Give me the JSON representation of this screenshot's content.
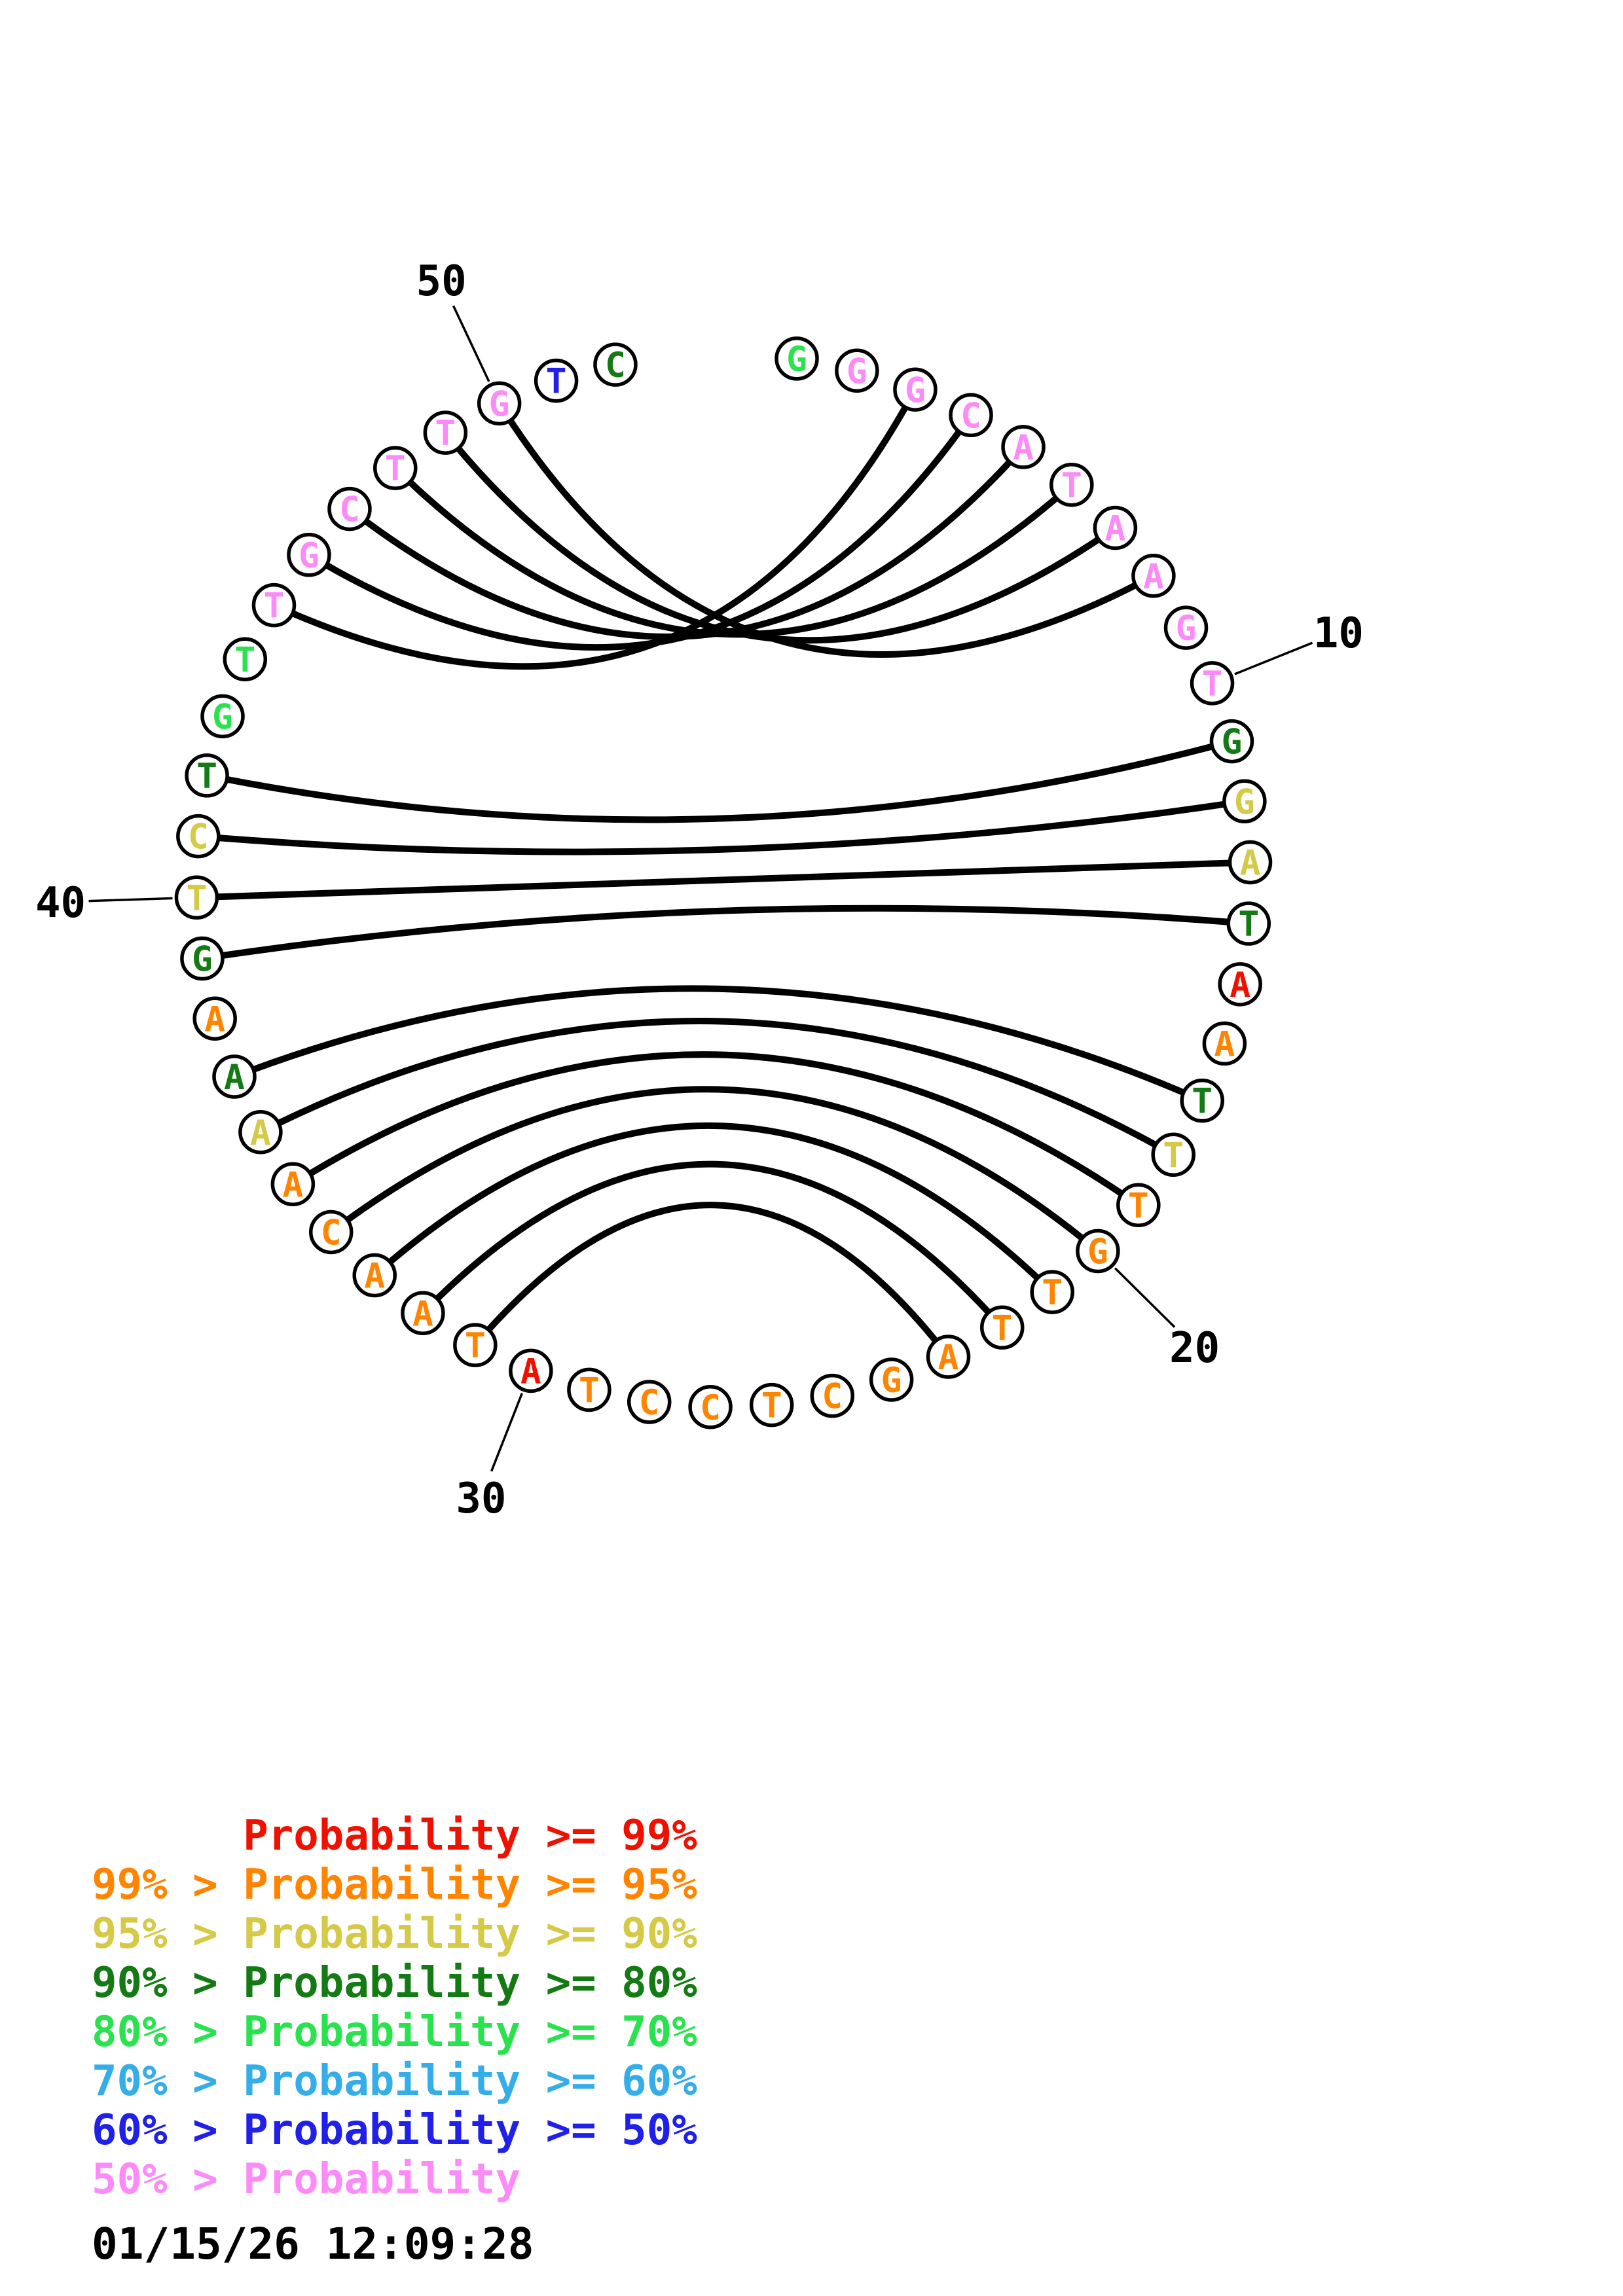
{
  "chart_data": {
    "type": "circle-plot",
    "title": "",
    "plot_style": "nucleic-acid base-pair probability circle plot",
    "num_nucleotides": 52,
    "bases": "GGGCATAAGTGGATAATTTGTTAGCTCCTATAACAAAAGTCTGTTGCTTGTC",
    "base_prob_classes": [
      "bright-green",
      "pink",
      "pink",
      "pink",
      "pink",
      "pink",
      "pink",
      "pink",
      "pink",
      "pink",
      "dark-green",
      "yellow",
      "yellow",
      "dark-green",
      "red",
      "orange",
      "dark-green",
      "yellow",
      "orange",
      "orange",
      "orange",
      "orange",
      "orange",
      "orange",
      "orange",
      "orange",
      "orange",
      "orange",
      "orange",
      "red",
      "orange",
      "orange",
      "orange",
      "orange",
      "orange",
      "yellow",
      "dark-green",
      "orange",
      "dark-green",
      "yellow",
      "yellow",
      "dark-green",
      "bright-green",
      "bright-green",
      "pink",
      "pink",
      "pink",
      "pink",
      "pink",
      "pink",
      "blue",
      "dark-green"
    ],
    "pairs": [
      [
        3,
        45
      ],
      [
        4,
        46
      ],
      [
        5,
        47
      ],
      [
        6,
        48
      ],
      [
        7,
        49
      ],
      [
        8,
        50
      ],
      [
        11,
        42
      ],
      [
        12,
        41
      ],
      [
        13,
        40
      ],
      [
        14,
        39
      ],
      [
        17,
        37
      ],
      [
        18,
        36
      ],
      [
        19,
        35
      ],
      [
        20,
        34
      ],
      [
        21,
        33
      ],
      [
        22,
        32
      ],
      [
        23,
        31
      ]
    ],
    "position_labels": [
      {
        "position": 10,
        "text": "10"
      },
      {
        "position": 20,
        "text": "20"
      },
      {
        "position": 30,
        "text": "30"
      },
      {
        "position": 40,
        "text": "40"
      },
      {
        "position": 50,
        "text": "50"
      }
    ],
    "legend": [
      {
        "text": "      Probability >= 99%",
        "class": "red"
      },
      {
        "text": "99% > Probability >= 95%",
        "class": "orange"
      },
      {
        "text": "95% > Probability >= 90%",
        "class": "yellow"
      },
      {
        "text": "90% > Probability >= 80%",
        "class": "dark-green"
      },
      {
        "text": "80% > Probability >= 70%",
        "class": "bright-green"
      },
      {
        "text": "70% > Probability >= 60%",
        "class": "light-blue"
      },
      {
        "text": "60% > Probability >= 50%",
        "class": "blue"
      },
      {
        "text": "50% > Probability",
        "class": "pink"
      }
    ],
    "palette": {
      "red": "#ee1100",
      "orange": "#ff8400",
      "yellow": "#d4ca48",
      "dark-green": "#147a14",
      "bright-green": "#2ae24e",
      "light-blue": "#35ade8",
      "blue": "#2020e8",
      "pink": "#fc8af8",
      "arc": "#000000",
      "circle-outline": "#000000",
      "label": "#000000"
    },
    "timestamp": "01/15/26 12:09:28"
  }
}
